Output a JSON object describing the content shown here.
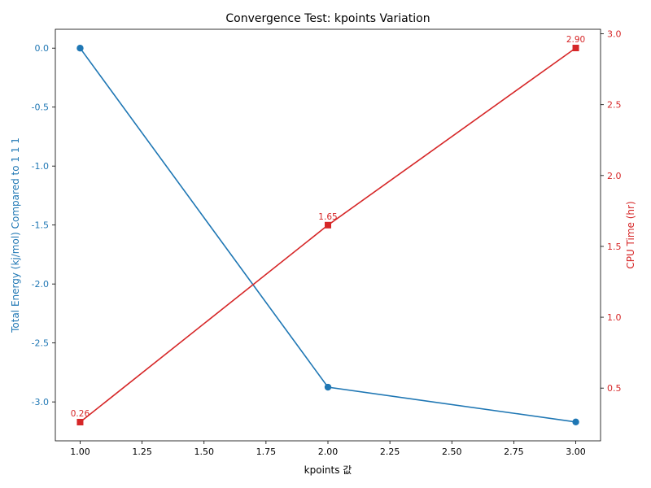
{
  "chart_data": {
    "type": "line",
    "title": "Convergence Test: kpoints Variation",
    "xlabel": "kpoints 값",
    "x": [
      1.0,
      2.0,
      3.0
    ],
    "xlim": [
      0.9,
      3.1
    ],
    "xticks": [
      1.0,
      1.25,
      1.5,
      1.75,
      2.0,
      2.25,
      2.5,
      2.75,
      3.0
    ],
    "xtick_labels": [
      "1.00",
      "1.25",
      "1.50",
      "1.75",
      "2.00",
      "2.25",
      "2.50",
      "2.75",
      "3.00"
    ],
    "grid": false,
    "series": [
      {
        "key": "energy",
        "axis": "left",
        "values": [
          0.0,
          -2.875,
          -3.17
        ],
        "color": "#1f77b4",
        "marker": "circle",
        "ylabel": "Total Energy (kj/mol) Compared to 1 1 1",
        "ylim": [
          -3.33,
          0.16
        ],
        "yticks": [
          0.0,
          -0.5,
          -1.0,
          -1.5,
          -2.0,
          -2.5,
          -3.0
        ],
        "ytick_labels": [
          "0.0",
          "-0.5",
          "-1.0",
          "-1.5",
          "-2.0",
          "-2.5",
          "-3.0"
        ]
      },
      {
        "key": "cpu",
        "axis": "right",
        "values": [
          0.26,
          1.65,
          2.9
        ],
        "data_labels": [
          "0.26",
          "1.65",
          "2.90"
        ],
        "color": "#d62728",
        "marker": "square",
        "ylabel": "CPU Time (hr)",
        "ylim": [
          0.128,
          3.032
        ],
        "yticks": [
          0.5,
          1.0,
          1.5,
          2.0,
          2.5,
          3.0
        ],
        "ytick_labels": [
          "0.5",
          "1.0",
          "1.5",
          "2.0",
          "2.5",
          "3.0"
        ]
      }
    ]
  }
}
